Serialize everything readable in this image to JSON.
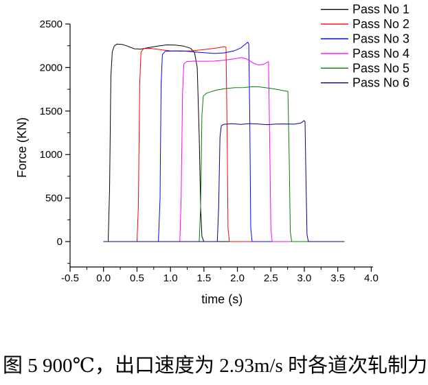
{
  "figure": {
    "caption": "图 5 900℃，出口速度为 2.93m/s 时各道次轧制力"
  },
  "chart_data": {
    "type": "line",
    "title": "",
    "xlabel": "time (s)",
    "ylabel": "Force (KN)",
    "xlim": [
      -0.5,
      4.0
    ],
    "ylim": [
      0,
      2500
    ],
    "grid": false,
    "legend_position": "top-right",
    "x_ticks": [
      -0.5,
      0.0,
      0.5,
      1.0,
      1.5,
      2.0,
      2.5,
      3.0,
      3.5,
      4.0
    ],
    "x_tick_labels": [
      "-0.5",
      "0.0",
      "0.5",
      "1.0",
      "1.5",
      "2.0",
      "2.5",
      "3.0",
      "3.5",
      "4.0"
    ],
    "y_ticks": [
      0,
      500,
      1000,
      1500,
      2000,
      2500
    ],
    "y_tick_labels": [
      "0",
      "500",
      "1000",
      "1500",
      "2000",
      "2500"
    ],
    "x_minor_ticks": [
      -0.25,
      0.25,
      0.75,
      1.25,
      1.75,
      2.25,
      2.75,
      3.25,
      3.75
    ],
    "y_minor_ticks": [
      -250,
      250,
      750,
      1250,
      1750,
      2250
    ],
    "series": [
      {
        "name": "Pass No 1",
        "color": "#000000",
        "points": [
          [
            0.0,
            0
          ],
          [
            0.07,
            0
          ],
          [
            0.09,
            600
          ],
          [
            0.11,
            1900
          ],
          [
            0.13,
            2180
          ],
          [
            0.16,
            2248
          ],
          [
            0.2,
            2270
          ],
          [
            0.28,
            2266
          ],
          [
            0.36,
            2245
          ],
          [
            0.46,
            2215
          ],
          [
            0.56,
            2212
          ],
          [
            0.68,
            2230
          ],
          [
            0.82,
            2248
          ],
          [
            0.95,
            2260
          ],
          [
            1.08,
            2258
          ],
          [
            1.2,
            2245
          ],
          [
            1.3,
            2222
          ],
          [
            1.36,
            2170
          ],
          [
            1.4,
            2000
          ],
          [
            1.43,
            1200
          ],
          [
            1.45,
            400
          ],
          [
            1.47,
            60
          ],
          [
            1.5,
            0
          ],
          [
            3.6,
            0
          ]
        ]
      },
      {
        "name": "Pass No 2",
        "color": "#ff0000",
        "points": [
          [
            0.0,
            0
          ],
          [
            0.5,
            0
          ],
          [
            0.52,
            400
          ],
          [
            0.54,
            1800
          ],
          [
            0.56,
            2180
          ],
          [
            0.6,
            2218
          ],
          [
            0.7,
            2220
          ],
          [
            0.85,
            2205
          ],
          [
            1.0,
            2192
          ],
          [
            1.15,
            2188
          ],
          [
            1.3,
            2192
          ],
          [
            1.45,
            2202
          ],
          [
            1.6,
            2215
          ],
          [
            1.72,
            2228
          ],
          [
            1.8,
            2240
          ],
          [
            1.83,
            2234
          ],
          [
            1.845,
            1300
          ],
          [
            1.86,
            150
          ],
          [
            1.88,
            0
          ],
          [
            3.6,
            0
          ]
        ]
      },
      {
        "name": "Pass No 3",
        "color": "#0000ff",
        "points": [
          [
            0.0,
            0
          ],
          [
            0.82,
            0
          ],
          [
            0.845,
            500
          ],
          [
            0.86,
            1800
          ],
          [
            0.88,
            2150
          ],
          [
            0.92,
            2185
          ],
          [
            1.05,
            2192
          ],
          [
            1.2,
            2190
          ],
          [
            1.35,
            2180
          ],
          [
            1.5,
            2170
          ],
          [
            1.65,
            2162
          ],
          [
            1.8,
            2168
          ],
          [
            1.95,
            2192
          ],
          [
            2.05,
            2225
          ],
          [
            2.12,
            2268
          ],
          [
            2.155,
            2292
          ],
          [
            2.17,
            2270
          ],
          [
            2.185,
            1400
          ],
          [
            2.2,
            150
          ],
          [
            2.22,
            0
          ],
          [
            3.6,
            0
          ]
        ]
      },
      {
        "name": "Pass No 4",
        "color": "#ff00ff",
        "points": [
          [
            0.0,
            0
          ],
          [
            1.14,
            0
          ],
          [
            1.16,
            500
          ],
          [
            1.18,
            1700
          ],
          [
            1.2,
            2040
          ],
          [
            1.24,
            2068
          ],
          [
            1.35,
            2074
          ],
          [
            1.5,
            2072
          ],
          [
            1.65,
            2074
          ],
          [
            1.8,
            2084
          ],
          [
            1.95,
            2100
          ],
          [
            2.06,
            2114
          ],
          [
            2.14,
            2098
          ],
          [
            2.24,
            2050
          ],
          [
            2.32,
            2028
          ],
          [
            2.39,
            2036
          ],
          [
            2.45,
            2062
          ],
          [
            2.465,
            2066
          ],
          [
            2.48,
            1300
          ],
          [
            2.5,
            150
          ],
          [
            2.52,
            0
          ],
          [
            3.6,
            0
          ]
        ]
      },
      {
        "name": "Pass No 5",
        "color": "#008000",
        "points": [
          [
            0.0,
            0
          ],
          [
            1.43,
            0
          ],
          [
            1.45,
            400
          ],
          [
            1.47,
            1450
          ],
          [
            1.49,
            1672
          ],
          [
            1.54,
            1706
          ],
          [
            1.68,
            1740
          ],
          [
            1.82,
            1758
          ],
          [
            1.96,
            1768
          ],
          [
            2.1,
            1770
          ],
          [
            2.22,
            1780
          ],
          [
            2.32,
            1778
          ],
          [
            2.42,
            1768
          ],
          [
            2.52,
            1758
          ],
          [
            2.62,
            1745
          ],
          [
            2.7,
            1732
          ],
          [
            2.755,
            1726
          ],
          [
            2.775,
            900
          ],
          [
            2.79,
            120
          ],
          [
            2.81,
            0
          ],
          [
            3.6,
            0
          ]
        ]
      },
      {
        "name": "Pass No 6",
        "color": "#000080",
        "points": [
          [
            0.0,
            0
          ],
          [
            1.7,
            0
          ],
          [
            1.72,
            400
          ],
          [
            1.74,
            1200
          ],
          [
            1.76,
            1332
          ],
          [
            1.8,
            1348
          ],
          [
            1.92,
            1354
          ],
          [
            2.05,
            1347
          ],
          [
            2.18,
            1356
          ],
          [
            2.32,
            1350
          ],
          [
            2.45,
            1344
          ],
          [
            2.58,
            1350
          ],
          [
            2.72,
            1352
          ],
          [
            2.85,
            1349
          ],
          [
            2.95,
            1362
          ],
          [
            2.995,
            1390
          ],
          [
            3.01,
            1380
          ],
          [
            3.025,
            700
          ],
          [
            3.04,
            80
          ],
          [
            3.06,
            0
          ],
          [
            3.6,
            0
          ]
        ]
      }
    ]
  }
}
